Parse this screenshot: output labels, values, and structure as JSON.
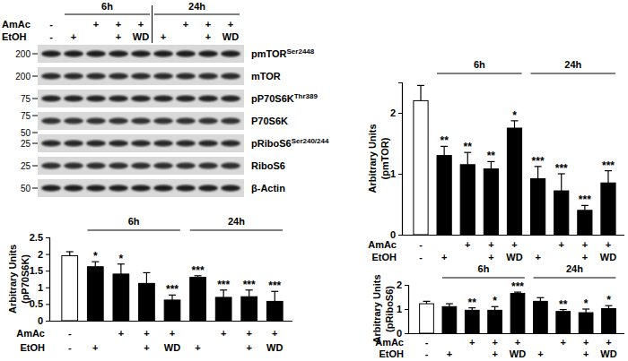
{
  "chart_data": [
    {
      "type": "bar",
      "y_label": [
        "Arbitrary Units",
        "(pmTOR)"
      ],
      "categories": [
        null,
        null,
        null,
        null,
        null,
        null,
        null,
        null,
        null
      ],
      "values": [
        2.2,
        1.3,
        1.15,
        1.08,
        1.75,
        0.92,
        0.72,
        0.4,
        0.85
      ],
      "errors": [
        0.25,
        0.15,
        0.2,
        0.12,
        0.12,
        0.2,
        0.28,
        0.08,
        0.2
      ],
      "annotations": [
        null,
        "**",
        "**",
        "**",
        "*",
        "***",
        "***",
        "***",
        "***"
      ],
      "colors": [
        "#ffffff",
        "#000000",
        "#000000",
        "#000000",
        "#000000",
        "#000000",
        "#000000",
        "#000000",
        "#000000"
      ],
      "ylim": [
        0,
        2.5
      ],
      "yticks": [
        0,
        1,
        2
      ],
      "groups": [
        {
          "label": "6h",
          "members": [
            1,
            2,
            3,
            4
          ]
        },
        {
          "label": "24h",
          "members": [
            5,
            6,
            7,
            8
          ]
        }
      ],
      "x_rows": [
        {
          "name": "AmAc",
          "labels": [
            "-",
            null,
            "+",
            "+",
            "+",
            null,
            "+",
            "+",
            "+"
          ]
        },
        {
          "name": "EtOH",
          "labels": [
            "-",
            "+",
            null,
            "+",
            "WD",
            "+",
            null,
            "+",
            "WD"
          ]
        }
      ]
    },
    {
      "type": "bar",
      "y_label": [
        "Arbitrary Units",
        "(pP70S6K)"
      ],
      "categories": [
        null,
        null,
        null,
        null,
        null,
        null,
        null,
        null,
        null
      ],
      "values": [
        1.95,
        1.62,
        1.4,
        1.12,
        0.62,
        1.3,
        0.7,
        0.72,
        0.58
      ],
      "errors": [
        0.12,
        0.15,
        0.3,
        0.32,
        0.15,
        0.05,
        0.22,
        0.2,
        0.3
      ],
      "annotations": [
        null,
        "*",
        "*",
        null,
        "***",
        "***",
        "***",
        "***",
        "***"
      ],
      "colors": [
        "#ffffff",
        "#000000",
        "#000000",
        "#000000",
        "#000000",
        "#000000",
        "#000000",
        "#000000",
        "#000000"
      ],
      "ylim": [
        0,
        2.5
      ],
      "yticks": [
        0,
        0.5,
        1,
        1.5,
        2,
        2.5
      ],
      "groups": [
        {
          "label": "6h",
          "members": [
            1,
            2,
            3,
            4
          ]
        },
        {
          "label": "24h",
          "members": [
            5,
            6,
            7,
            8
          ]
        }
      ],
      "x_rows": [
        {
          "name": "AmAc",
          "labels": [
            "-",
            null,
            "+",
            "+",
            "+",
            null,
            "+",
            "+",
            "+"
          ]
        },
        {
          "name": "EtOH",
          "labels": [
            "-",
            "+",
            null,
            "+",
            "WD",
            "+",
            null,
            "+",
            "WD"
          ]
        }
      ]
    },
    {
      "type": "bar",
      "y_label": [
        "Arbitrary Units",
        "(pRiboS6)"
      ],
      "categories": [
        null,
        null,
        null,
        null,
        null,
        null,
        null,
        null,
        null
      ],
      "values": [
        1.22,
        1.1,
        0.95,
        0.95,
        1.65,
        1.32,
        0.9,
        0.85,
        1.02
      ],
      "errors": [
        0.1,
        0.12,
        0.1,
        0.15,
        0.05,
        0.15,
        0.08,
        0.15,
        0.12
      ],
      "annotations": [
        null,
        null,
        "**",
        "*",
        "***",
        null,
        "**",
        "*",
        "*"
      ],
      "colors": [
        "#ffffff",
        "#000000",
        "#000000",
        "#000000",
        "#000000",
        "#000000",
        "#000000",
        "#000000",
        "#000000"
      ],
      "ylim": [
        0,
        2
      ],
      "yticks": [
        0,
        1,
        2
      ],
      "groups": [
        {
          "label": "6h",
          "members": [
            1,
            2,
            3,
            4
          ]
        },
        {
          "label": "24h",
          "members": [
            5,
            6,
            7,
            8
          ]
        }
      ],
      "x_rows": [
        {
          "name": "AmAc",
          "labels": [
            "-",
            null,
            "+",
            "+",
            "+",
            null,
            "+",
            "+",
            "+"
          ]
        },
        {
          "name": "EtOH",
          "labels": [
            "-",
            "+",
            null,
            "+",
            "WD",
            "+",
            null,
            "+",
            "WD"
          ]
        }
      ]
    }
  ],
  "blot": {
    "groups": [
      {
        "label": "6h",
        "members": [
          1,
          2,
          3,
          4
        ]
      },
      {
        "label": "24h",
        "members": [
          5,
          6,
          7,
          8
        ]
      }
    ],
    "rows": [
      {
        "name": "AmAc",
        "labels": [
          "-",
          null,
          "+",
          "+",
          "+",
          null,
          "+",
          "+",
          "+"
        ]
      },
      {
        "name": "EtOH",
        "labels": [
          "-",
          "+",
          null,
          "+",
          "WD",
          "+",
          null,
          "+",
          "WD"
        ]
      }
    ],
    "proteins": [
      {
        "name": "pmTOR",
        "site": "Ser2448",
        "mw": [
          200
        ]
      },
      {
        "name": "mTOR",
        "site": null,
        "mw": [
          200
        ]
      },
      {
        "name": "pP70S6K",
        "site": "Thr389",
        "mw": [
          75
        ]
      },
      {
        "name": "P70S6K",
        "site": null,
        "mw": [
          75,
          50
        ]
      },
      {
        "name": "pRiboS6",
        "site": "Ser240/244",
        "mw": [
          25
        ]
      },
      {
        "name": "RiboS6",
        "site": null,
        "mw": [
          25
        ]
      },
      {
        "name": "β-Actin",
        "site": null,
        "mw": [
          50
        ]
      }
    ]
  }
}
